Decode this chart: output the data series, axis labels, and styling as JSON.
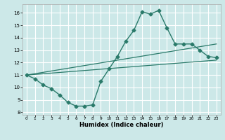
{
  "xlabel": "Humidex (Indice chaleur)",
  "bg_color": "#cce8e8",
  "grid_color": "#ffffff",
  "line_color": "#2a7a6a",
  "xlim": [
    -0.5,
    23.5
  ],
  "ylim": [
    7.8,
    16.7
  ],
  "yticks": [
    8,
    9,
    10,
    11,
    12,
    13,
    14,
    15,
    16
  ],
  "xticks": [
    0,
    1,
    2,
    3,
    4,
    5,
    6,
    7,
    8,
    9,
    10,
    11,
    12,
    13,
    14,
    15,
    16,
    17,
    18,
    19,
    20,
    21,
    22,
    23
  ],
  "curve1_x": [
    0,
    1,
    2,
    3,
    4,
    5,
    6,
    7,
    8,
    9,
    10,
    11,
    12,
    13,
    14,
    15,
    16,
    17,
    18,
    19,
    20,
    21,
    22,
    23
  ],
  "curve1_y": [
    11.0,
    10.7,
    10.2,
    9.9,
    9.4,
    8.8,
    8.5,
    8.5,
    8.6,
    10.5,
    11.5,
    12.5,
    13.7,
    14.6,
    16.1,
    15.9,
    16.2,
    14.8,
    13.5,
    13.5,
    13.5,
    13.0,
    12.5,
    12.4
  ],
  "line2_x": [
    0,
    23
  ],
  "line2_y": [
    11.0,
    13.5
  ],
  "line3_x": [
    0,
    23
  ],
  "line3_y": [
    11.0,
    12.2
  ]
}
